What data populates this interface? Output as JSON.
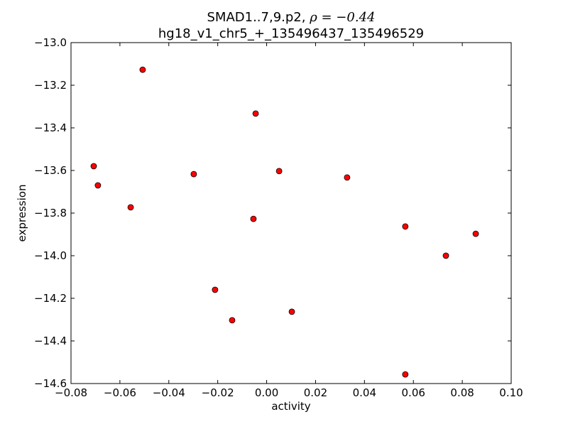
{
  "chart_data": {
    "type": "scatter",
    "title_line1": "SMAD1..7,9.p2, ",
    "title_rho": "ρ = −0.44",
    "title_line2": "hg18_v1_chr5_+_135496437_135496529",
    "xlabel": "activity",
    "ylabel": "expression",
    "xlim": [
      -0.08,
      0.1
    ],
    "ylim": [
      -14.6,
      -13.0
    ],
    "xticks": [
      -0.08,
      -0.06,
      -0.04,
      -0.02,
      0.0,
      0.02,
      0.04,
      0.06,
      0.08,
      0.1
    ],
    "xtick_labels": [
      "−0.08",
      "−0.06",
      "−0.04",
      "−0.02",
      "0.00",
      "0.02",
      "0.04",
      "0.06",
      "0.08",
      "0.10"
    ],
    "yticks": [
      -13.0,
      -13.2,
      -13.4,
      -13.6,
      -13.8,
      -14.0,
      -14.2,
      -14.4,
      -14.6
    ],
    "ytick_labels": [
      "−13.0",
      "−13.2",
      "−13.4",
      "−13.6",
      "−13.8",
      "−14.0",
      "−14.2",
      "−14.4",
      "−14.6"
    ],
    "grid": false,
    "marker_color": "#ff0000",
    "points": [
      {
        "x": -0.0507,
        "y": -13.127
      },
      {
        "x": -0.0045,
        "y": -13.333
      },
      {
        "x": -0.0707,
        "y": -13.58
      },
      {
        "x": -0.069,
        "y": -13.67
      },
      {
        "x": -0.0298,
        "y": -13.617
      },
      {
        "x": 0.0051,
        "y": -13.603
      },
      {
        "x": 0.0329,
        "y": -13.633
      },
      {
        "x": -0.0556,
        "y": -13.773
      },
      {
        "x": -0.0054,
        "y": -13.827
      },
      {
        "x": 0.0567,
        "y": -13.863
      },
      {
        "x": 0.0855,
        "y": -13.897
      },
      {
        "x": 0.0733,
        "y": -14.0
      },
      {
        "x": -0.0211,
        "y": -14.16
      },
      {
        "x": -0.0141,
        "y": -14.303
      },
      {
        "x": 0.0103,
        "y": -14.263
      },
      {
        "x": 0.0567,
        "y": -14.557
      }
    ]
  }
}
